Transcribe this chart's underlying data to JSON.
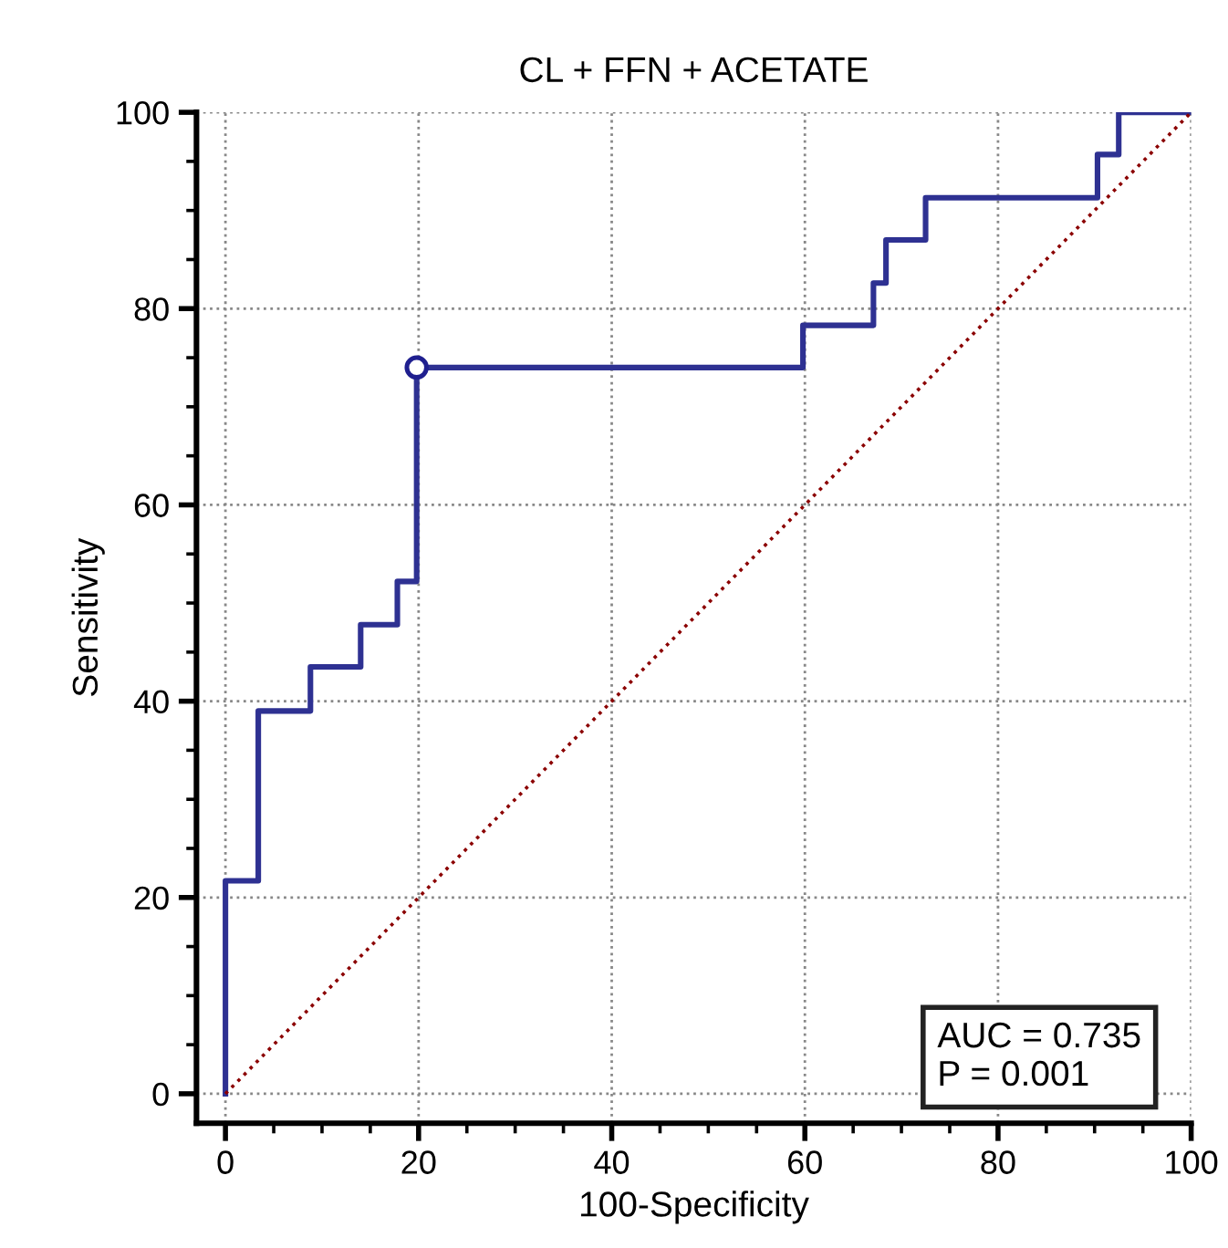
{
  "chart_data": {
    "type": "line",
    "title": "CL + FFN + ACETATE",
    "xlabel": "100-Specificity",
    "ylabel": "Sensitivity",
    "series": [
      {
        "color": "#2e3192",
        "line_style": "solid",
        "x": [
          0,
          0,
          3.4,
          3.4,
          8.8,
          8.8,
          14,
          14,
          17.8,
          17.8,
          19.8,
          19.8,
          59.8,
          59.8,
          67.1,
          67.1,
          68.4,
          68.4,
          72.5,
          72.5,
          90.3,
          90.3,
          92.5,
          92.5,
          100
        ],
        "values": [
          0,
          21.7,
          21.7,
          39,
          39,
          43.5,
          43.5,
          47.8,
          47.8,
          52.2,
          52.2,
          74,
          74,
          78.3,
          78.3,
          82.6,
          82.6,
          87,
          87,
          91.3,
          91.3,
          95.7,
          95.7,
          100,
          100
        ]
      },
      {
        "type": "scatter",
        "color": "#1f1f8f",
        "marker": "circle",
        "x": [
          19.8
        ],
        "values": [
          74
        ]
      },
      {
        "type": "line",
        "color": "#8b0000",
        "line_style": "dotted",
        "x": [
          0,
          100
        ],
        "values": [
          0,
          100
        ]
      }
    ],
    "xlim": [
      -3,
      100
    ],
    "ylim": [
      -3,
      100
    ],
    "xticks": [
      0,
      {
        "value": 5,
        "label": null
      },
      {
        "value": 10,
        "label": null
      },
      {
        "value": 15,
        "label": null
      },
      20,
      {
        "value": 25,
        "label": null
      },
      {
        "value": 30,
        "label": null
      },
      {
        "value": 35,
        "label": null
      },
      40,
      {
        "value": 45,
        "label": null
      },
      {
        "value": 50,
        "label": null
      },
      {
        "value": 55,
        "label": null
      },
      60,
      {
        "value": 65,
        "label": null
      },
      {
        "value": 70,
        "label": null
      },
      {
        "value": 75,
        "label": null
      },
      80,
      {
        "value": 85,
        "label": null
      },
      {
        "value": 90,
        "label": null
      },
      {
        "value": 95,
        "label": null
      },
      100
    ],
    "yticks": [
      0,
      {
        "value": 5,
        "label": null
      },
      {
        "value": 10,
        "label": null
      },
      {
        "value": 15,
        "label": null
      },
      20,
      {
        "value": 25,
        "label": null
      },
      {
        "value": 30,
        "label": null
      },
      {
        "value": 35,
        "label": null
      },
      40,
      {
        "value": 45,
        "label": null
      },
      {
        "value": 50,
        "label": null
      },
      {
        "value": 55,
        "label": null
      },
      60,
      {
        "value": 65,
        "label": null
      },
      {
        "value": 70,
        "label": null
      },
      {
        "value": 75,
        "label": null
      },
      80,
      {
        "value": 85,
        "label": null
      },
      {
        "value": 90,
        "label": null
      },
      {
        "value": 95,
        "label": null
      },
      100
    ],
    "grid": true,
    "annotations": [
      "AUC = 0.735\nP = 0.001"
    ]
  }
}
